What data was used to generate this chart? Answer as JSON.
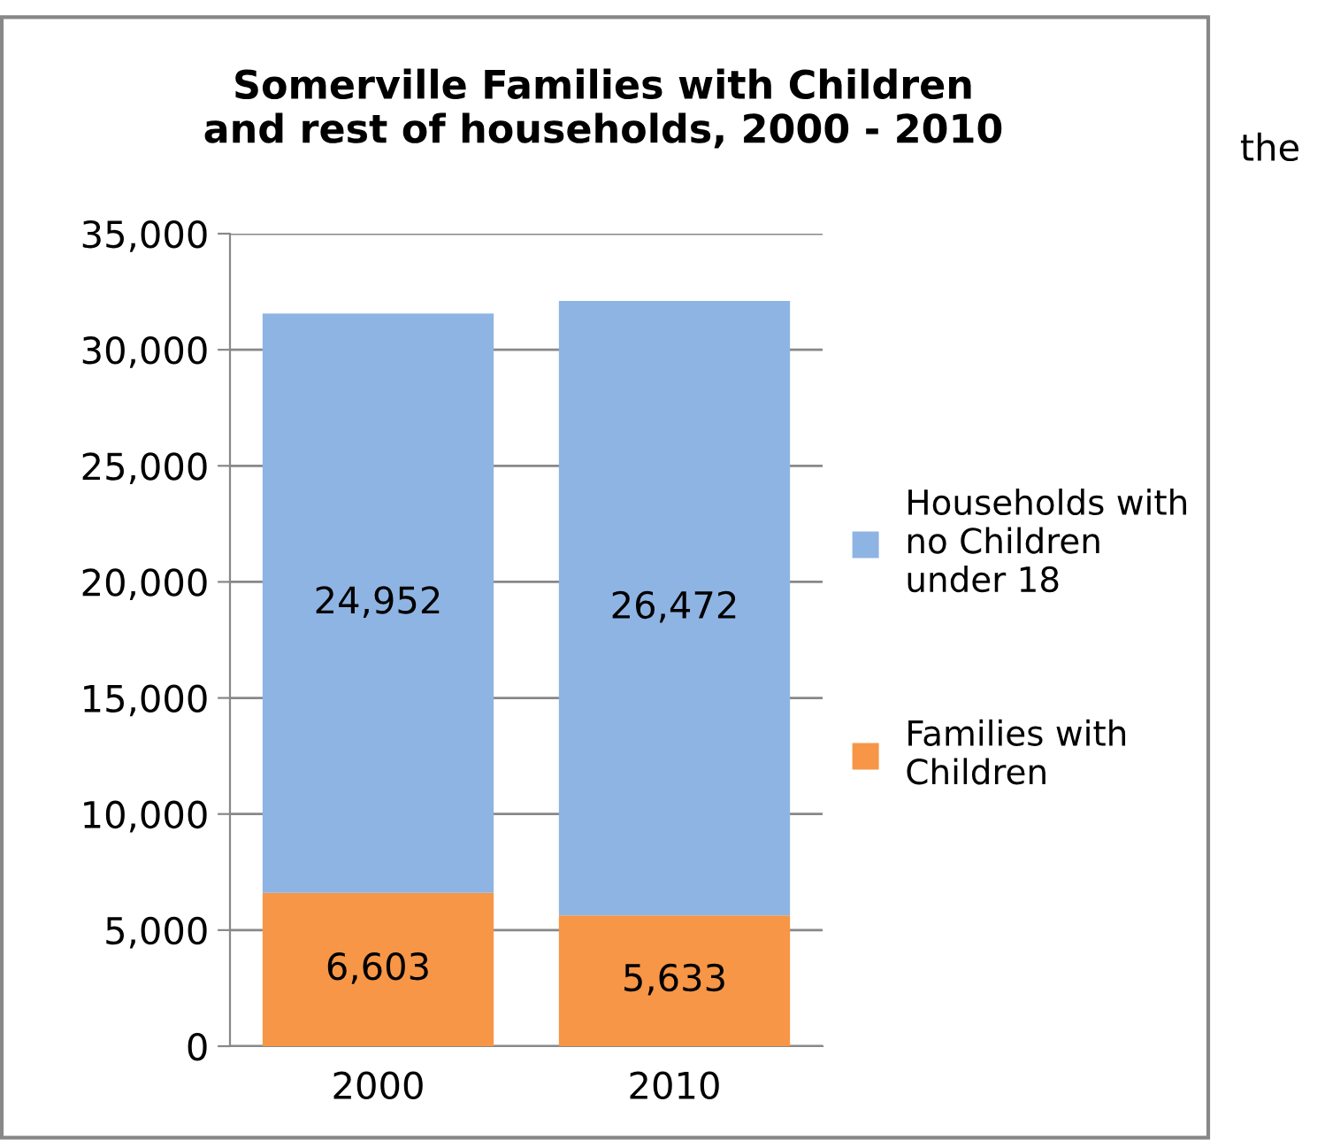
{
  "chart_data": {
    "type": "bar",
    "title": "Somerville Families with Children\nand rest of households, 2000 - 2010",
    "categories": [
      "2000",
      "2010"
    ],
    "stacked": true,
    "series": [
      {
        "name": "Families with\nChildren",
        "color": "#f79646",
        "values": [
          6603,
          5633
        ],
        "value_labels": [
          "6,603",
          "5,633"
        ]
      },
      {
        "name": "Households with\nno Children\nunder 18",
        "color": "#8eb4e3",
        "values": [
          24952,
          26472
        ],
        "value_labels": [
          "24,952",
          "26,472"
        ]
      }
    ],
    "ylim": [
      0,
      35000
    ],
    "yticks": [
      {
        "value": 0,
        "label": "0"
      },
      {
        "value": 5000,
        "label": "5,000"
      },
      {
        "value": 10000,
        "label": "10,000"
      },
      {
        "value": 15000,
        "label": "15,000"
      },
      {
        "value": 20000,
        "label": "20,000"
      },
      {
        "value": 25000,
        "label": "25,000"
      },
      {
        "value": 30000,
        "label": "30,000"
      },
      {
        "value": 35000,
        "label": "35,000"
      }
    ],
    "grid": "y",
    "legend": "right",
    "annotations": [
      "the"
    ]
  }
}
